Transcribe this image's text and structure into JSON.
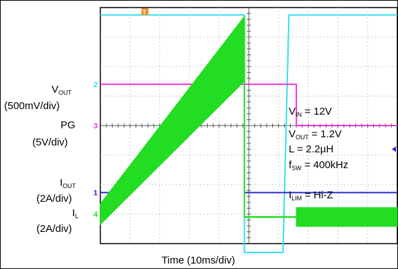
{
  "chart_data": {
    "type": "line",
    "x_axis": {
      "label": "Time (10ms/div)",
      "divisions": 10,
      "grid": true
    },
    "y_divisions": 8,
    "channel_labels": [
      {
        "text": "V",
        "sub": "OUT"
      },
      {
        "text": "(500mV/div)"
      },
      {
        "text": "PG"
      },
      {
        "text": "(5V/div)"
      },
      {
        "text": "I",
        "sub": "OUT"
      },
      {
        "text": "(2A/div)"
      },
      {
        "text": "I",
        "sub": "L"
      },
      {
        "text": "(2A/div)"
      }
    ],
    "channel_markers": [
      "2",
      "3",
      "1",
      "4"
    ],
    "trigger_marker": "T",
    "conditions": [
      {
        "text": "V",
        "sub": "IN",
        "rest": " = 12V"
      },
      {
        "text": "V",
        "sub": "OUT",
        "rest": " = 1.2V"
      },
      {
        "text": "L = 2.2µH"
      },
      {
        "text": "f",
        "sub": "SW",
        "rest": " = 400kHz"
      },
      {
        "text": "I",
        "sub": "LIM",
        "rest": " = Hi-Z"
      }
    ],
    "series": [
      {
        "name": "V_OUT",
        "color": "#33e0ee",
        "x": [
          0,
          4.85,
          4.85,
          6.15,
          6.35,
          6.6
        ],
        "y": [
          7.75,
          7.75,
          -0.3,
          -0.3,
          7.75,
          7.75
        ]
      },
      {
        "name": "PG",
        "color": "#ee33dd",
        "x": [
          0,
          6.6,
          6.6,
          6.9
        ],
        "y": [
          5.4,
          5.4,
          4.0,
          4.0
        ]
      },
      {
        "name": "I_OUT",
        "color": "#2828cc",
        "x": [
          0,
          0.3,
          4.6,
          4.85,
          4.85,
          6.6
        ],
        "y": [
          1.73,
          1.73,
          6.95,
          7.2,
          1.73,
          1.73
        ]
      },
      {
        "name": "I_L",
        "color": "#22dd22",
        "x": [
          0,
          4.85,
          4.85,
          6.6
        ],
        "y": [
          1.0,
          6.6,
          0.9,
          0.9
        ],
        "ripple_band": true
      }
    ],
    "colors": {
      "ch1": "#2828cc",
      "ch2": "#33e0ee",
      "ch3": "#ee33dd",
      "ch4": "#22dd22",
      "trigger": "#f08a1c"
    }
  }
}
